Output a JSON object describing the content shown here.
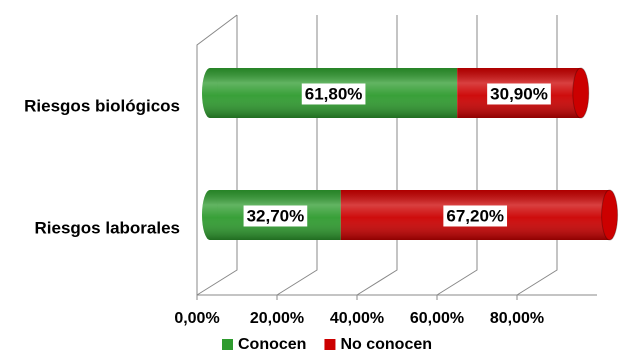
{
  "chart_data": {
    "type": "bar",
    "categories": [
      "Riesgos biológicos",
      "Riesgos laborales"
    ],
    "series": [
      {
        "name": "Conocen",
        "color": "#2e9b2e",
        "values": [
          61.8,
          32.7
        ],
        "value_labels": [
          "61,80%",
          "32,70%"
        ]
      },
      {
        "name": "No conocen",
        "color": "#cc0000",
        "values": [
          30.9,
          67.2
        ],
        "value_labels": [
          "30,90%",
          "67,20%"
        ]
      }
    ],
    "xlim": [
      0,
      100
    ],
    "xticks": [
      {
        "value": 0,
        "label": "0,00%"
      },
      {
        "value": 20,
        "label": "20,00%"
      },
      {
        "value": 40,
        "label": "40,00%"
      },
      {
        "value": 60,
        "label": "60,00%"
      },
      {
        "value": 80,
        "label": "80,00%"
      }
    ],
    "grid": true,
    "legend": "bottom"
  }
}
